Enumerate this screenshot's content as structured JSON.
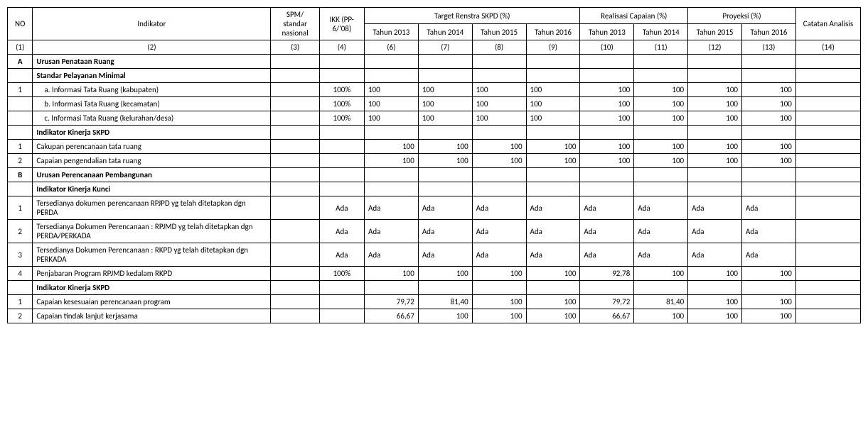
{
  "headers": {
    "no": "NO",
    "indikator": "Indikator",
    "spm": "SPM/ standar nasional",
    "ikk": "IKK (PP-6/'08)",
    "target_group": "Target Renstra SKPD (%)",
    "realisasi_group": "Realisasi Capaian (%)",
    "proyeksi_group": "Proyeksi (%)",
    "catatan": "Catatan Analisis",
    "t2013": "Tahun 2013",
    "t2014": "Tahun 2014",
    "t2015": "Tahun 2015",
    "t2016": "Tahun 2016"
  },
  "numrow": [
    "(1)",
    "(2)",
    "(3)",
    "(4)",
    "(6)",
    "(7)",
    "(8)",
    "(9)",
    "(10)",
    "(11)",
    "(12)",
    "(13)",
    "(14)"
  ],
  "rows": [
    {
      "no": "A",
      "ind": "Urusan Penataan Ruang",
      "bold": true
    },
    {
      "no": "",
      "ind": "Standar Pelayanan Minimal",
      "bold": true
    },
    {
      "no": "1",
      "ind": "a.   Informasi Tata Ruang (kabupaten)",
      "indent": "a",
      "ikk": "100%",
      "t13": "100",
      "t14": "100",
      "t15": "100",
      "t16": "100",
      "r13": "100",
      "r14": "100",
      "p15": "100",
      "p16": "100",
      "alignT": "left",
      "alignRP": "right"
    },
    {
      "no": "",
      "ind": "b.   Informasi Tata Ruang (kecamatan)",
      "indent": "a",
      "ikk": "100%",
      "t13": "100",
      "t14": "100",
      "t15": "100",
      "t16": "100",
      "r13": "100",
      "r14": "100",
      "p15": "100",
      "p16": "100",
      "alignT": "left",
      "alignRP": "right"
    },
    {
      "no": "",
      "ind": "c.   Informasi Tata Ruang (kelurahan/desa)",
      "indent": "a",
      "ikk": "100%",
      "t13": "100",
      "t14": "100",
      "t15": "100",
      "t16": "100",
      "r13": "100",
      "r14": "100",
      "p15": "100",
      "p16": "100",
      "alignT": "left",
      "alignRP": "right"
    },
    {
      "no": "",
      "ind": "Indikator Kinerja SKPD",
      "bold": true
    },
    {
      "no": "1",
      "ind": "Cakupan perencanaan tata ruang",
      "t13": "100",
      "t14": "100",
      "t15": "100",
      "t16": "100",
      "r13": "100",
      "r14": "100",
      "p15": "100",
      "p16": "100",
      "alignT": "right",
      "alignRP": "right"
    },
    {
      "no": "2",
      "ind": "Capaian pengendalian tata  ruang",
      "t13": "100",
      "t14": "100",
      "t15": "100",
      "t16": "100",
      "r13": "100",
      "r14": "100",
      "p15": "100",
      "p16": "100",
      "alignT": "right",
      "alignRP": "right"
    },
    {
      "no": "B",
      "ind": "Urusan Perencanaan Pembangunan",
      "bold": true
    },
    {
      "no": "",
      "ind": "Indikator Kinerja Kunci",
      "bold": true
    },
    {
      "no": "1",
      "ind": "Tersedianya dokumen perencanaan RPJPD yg telah ditetapkan dgn PERDA",
      "ikk": "Ada",
      "t13": "Ada",
      "t14": "Ada",
      "t15": "Ada",
      "t16": "Ada",
      "r13": "Ada",
      "r14": "Ada",
      "p15": "Ada",
      "p16": "Ada",
      "alignT": "left",
      "alignRP": "left"
    },
    {
      "no": "2",
      "ind": "Tersedianya Dokumen Perencanaan : RPJMD yg telah ditetapkan dgn PERDA/PERKADA",
      "ikk": "Ada",
      "t13": "Ada",
      "t14": "Ada",
      "t15": "Ada",
      "t16": "Ada",
      "r13": "Ada",
      "r14": "Ada",
      "p15": "Ada",
      "p16": "Ada",
      "alignT": "left",
      "alignRP": "left"
    },
    {
      "no": "3",
      "ind": "Tersedianya Dokumen Perencanaan : RKPD yg telah ditetapkan dgn PERKADA",
      "ikk": "Ada",
      "t13": "Ada",
      "t14": "Ada",
      "t15": "Ada",
      "t16": "Ada",
      "r13": "Ada",
      "r14": "Ada",
      "p15": "Ada",
      "p16": "Ada",
      "alignT": "left",
      "alignRP": "left"
    },
    {
      "no": "4",
      "ind": "Penjabaran Program RPJMD kedalam RKPD",
      "ikk": "100%",
      "t13": "100",
      "t14": "100",
      "t15": "100",
      "t16": "100",
      "r13": "92,78",
      "r14": "100",
      "p15": "100",
      "p16": "100",
      "alignT": "right",
      "alignRP": "right"
    },
    {
      "no": "",
      "ind": "Indikator Kinerja SKPD",
      "bold": true
    },
    {
      "no": "1",
      "ind": "Capaian kesesuaian perencanaan program",
      "t13": "79,72",
      "t14": "81,40",
      "t15": "100",
      "t16": "100",
      "r13": "79,72",
      "r14": "81,40",
      "p15": "100",
      "p16": "100",
      "alignT": "right",
      "alignRP": "right"
    },
    {
      "no": "2",
      "ind": "Capaian tindak lanjut kerjasama",
      "t13": "66,67",
      "t14": "100",
      "t15": "100",
      "t16": "100",
      "r13": "66,67",
      "r14": "100",
      "p15": "100",
      "p16": "100",
      "alignT": "right",
      "alignRP": "right"
    }
  ]
}
